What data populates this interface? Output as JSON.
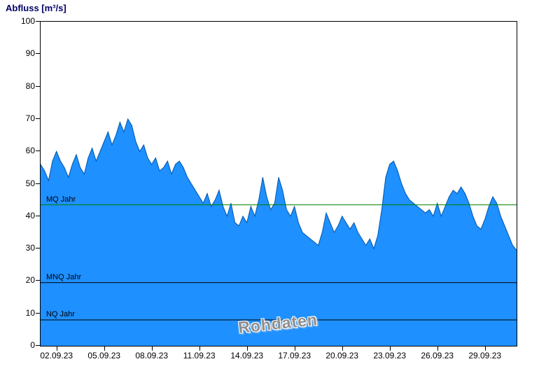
{
  "colors": {
    "title": "#000066",
    "area_fill": "#1e90ff",
    "area_stroke": "#0055aa",
    "axis": "#000000"
  },
  "chart_data": {
    "type": "area",
    "title": "Abfluss [m³/s]",
    "ylabel": "Abfluss [m³/s]",
    "xlabel": "",
    "ylim": [
      0,
      100
    ],
    "y_ticks": [
      0,
      10,
      20,
      30,
      40,
      50,
      60,
      70,
      80,
      90,
      100
    ],
    "x_range_days": 30,
    "x_ticks": [
      {
        "label": "02.09.23",
        "day": 1
      },
      {
        "label": "05.09.23",
        "day": 4
      },
      {
        "label": "08.09.23",
        "day": 7
      },
      {
        "label": "11.09.23",
        "day": 10
      },
      {
        "label": "14.09.23",
        "day": 13
      },
      {
        "label": "17.09.23",
        "day": 16
      },
      {
        "label": "20.09.23",
        "day": 19
      },
      {
        "label": "23.09.23",
        "day": 22
      },
      {
        "label": "26.09.23",
        "day": 25
      },
      {
        "label": "29.09.23",
        "day": 28
      }
    ],
    "grid": false,
    "legend": false,
    "watermark": "Rohdaten",
    "reference_lines": [
      {
        "label": "MQ Jahr",
        "value": 43.5,
        "color": "#008000"
      },
      {
        "label": "MNQ Jahr",
        "value": 19.5,
        "color": "#000000"
      },
      {
        "label": "NQ Jahr",
        "value": 8.0,
        "color": "#000000"
      }
    ],
    "series": [
      {
        "name": "Abfluss",
        "unit": "m³/s",
        "points_per_day": 4,
        "values": [
          56,
          54,
          51,
          57,
          60,
          57,
          55,
          52,
          56,
          59,
          55,
          53,
          58,
          61,
          57,
          60,
          63,
          66,
          62,
          65,
          69,
          66,
          70,
          68,
          63,
          60,
          62,
          58,
          56,
          58,
          54,
          55,
          57,
          53,
          56,
          57,
          55,
          52,
          50,
          48,
          46,
          44,
          47,
          43,
          45,
          48,
          43,
          40,
          44,
          38,
          37,
          40,
          38,
          43,
          40,
          45,
          52,
          46,
          42,
          44,
          52,
          48,
          42,
          40,
          43,
          38,
          35,
          34,
          33,
          32,
          31,
          35,
          41,
          38,
          35,
          37,
          40,
          38,
          36,
          38,
          35,
          33,
          31,
          33,
          30,
          34,
          42,
          52,
          56,
          57,
          54,
          50,
          47,
          45,
          44,
          43,
          42,
          41,
          42,
          40,
          44,
          40,
          43,
          46,
          48,
          47,
          49,
          47,
          44,
          40,
          37,
          36,
          39,
          43,
          46,
          44,
          40,
          37,
          34,
          31,
          29.5
        ]
      }
    ]
  }
}
